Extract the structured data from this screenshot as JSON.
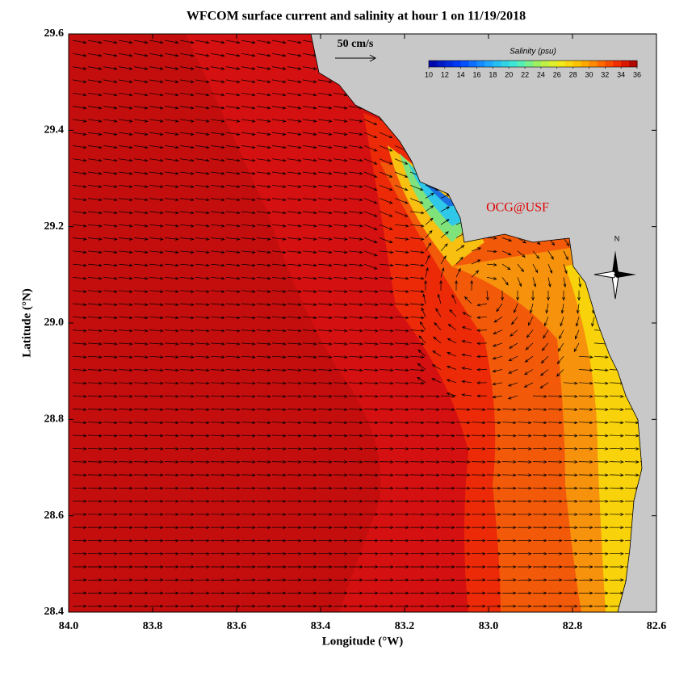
{
  "title": "WFCOM surface current and salinity at hour 1 on 11/19/2018",
  "x_axis": {
    "label": "Longitude (°W)",
    "lim": [
      84.0,
      82.6
    ],
    "ticks": [
      {
        "value": 84.0,
        "label": "84.0"
      },
      83.8,
      83.6,
      83.4,
      83.2,
      {
        "value": 83.0,
        "label": "83.0"
      },
      82.8,
      82.6
    ]
  },
  "y_axis": {
    "label": "Latitude (°N)",
    "lim": [
      28.4,
      29.6
    ],
    "ticks": [
      28.4,
      28.6,
      28.8,
      {
        "value": 29.0,
        "label": "29.0"
      },
      29.2,
      29.4,
      29.6
    ]
  },
  "colorbar": {
    "title": "Salinity (psu)",
    "lim": [
      10,
      36
    ],
    "ticks": [
      10,
      12,
      14,
      16,
      18,
      20,
      22,
      24,
      26,
      28,
      30,
      32,
      34,
      36
    ]
  },
  "scale_label": "50 cm/s",
  "credit": "OCG@USF",
  "compass_label": "N"
}
